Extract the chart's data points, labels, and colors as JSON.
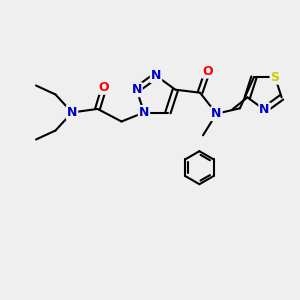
{
  "background_color": "#efefef",
  "bond_color": "#000000",
  "bond_width": 1.5,
  "atom_colors": {
    "N": "#0000cc",
    "O": "#ff0000",
    "S": "#cccc00"
  },
  "figsize": [
    3.0,
    3.0
  ],
  "dpi": 100
}
